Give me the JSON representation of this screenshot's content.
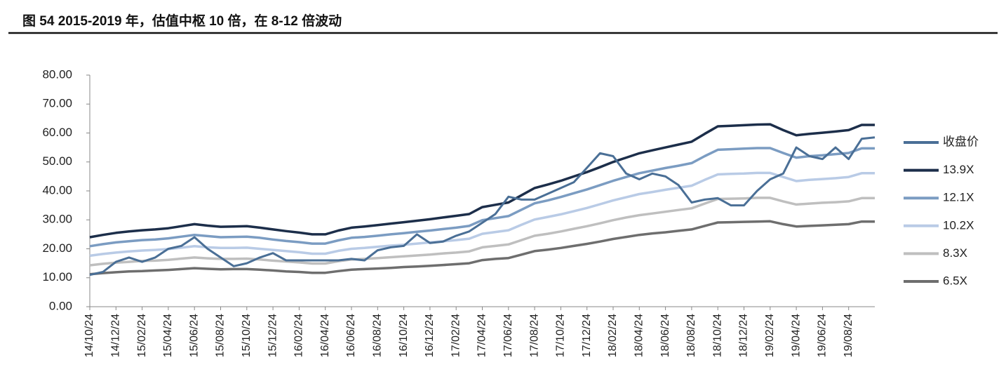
{
  "chart_data": {
    "type": "line",
    "title": "图 54 2015-2019 年，估值中枢 10 倍，在 8-12 倍波动",
    "categories": [
      "14/10/24",
      null,
      "14/12/24",
      null,
      "15/02/24",
      null,
      "15/04/24",
      null,
      "15/06/24",
      null,
      "15/08/24",
      null,
      "15/10/24",
      null,
      "15/12/24",
      null,
      "16/02/24",
      null,
      "16/04/24",
      null,
      "16/06/24",
      null,
      "16/08/24",
      null,
      "16/10/24",
      null,
      "16/12/24",
      null,
      "17/02/24",
      null,
      "17/04/24",
      null,
      "17/06/24",
      null,
      "17/08/24",
      null,
      "17/10/24",
      null,
      "17/12/24",
      null,
      "18/02/24",
      null,
      "18/04/24",
      null,
      "18/06/24",
      null,
      "18/08/24",
      null,
      "18/10/24",
      null,
      "18/12/24",
      null,
      "19/02/24",
      null,
      "19/04/24",
      null,
      "19/06/24",
      null,
      "19/08/24",
      null,
      null
    ],
    "ylim": [
      0,
      80
    ],
    "yticks": [
      {
        "value": 0,
        "label": "0.00"
      },
      {
        "value": 10,
        "label": "10.00"
      },
      {
        "value": 20,
        "label": "20.00"
      },
      {
        "value": 30,
        "label": "30.00"
      },
      {
        "value": 40,
        "label": "40.00"
      },
      {
        "value": 50,
        "label": "50.00"
      },
      {
        "value": 60,
        "label": "60.00"
      },
      {
        "value": 70,
        "label": "70.00"
      },
      {
        "value": 80,
        "label": "80.00"
      }
    ],
    "grid": false,
    "legend": "right",
    "series": [
      {
        "name": "收盘价",
        "color": "#4a6f96",
        "values": [
          11,
          12,
          15.5,
          17,
          15.5,
          17,
          20,
          21,
          24,
          20,
          17,
          14,
          15,
          17,
          18.5,
          16,
          16,
          16,
          16,
          16,
          16.5,
          16,
          19.5,
          20.5,
          21,
          25,
          22,
          22.5,
          24.5,
          26,
          29,
          32,
          38,
          37,
          37,
          39,
          41,
          43,
          48,
          53,
          52,
          46,
          44,
          46,
          45,
          42,
          36,
          37,
          37.5,
          35,
          35,
          40,
          44,
          46,
          55,
          52,
          51,
          55,
          51,
          58,
          58.5
        ]
      },
      {
        "name": "13.9X",
        "color": "#1c2e4a",
        "values": [
          24.0,
          24.8,
          25.5,
          26.0,
          26.4,
          26.7,
          27.1,
          27.8,
          28.5,
          28.0,
          27.6,
          27.7,
          27.8,
          27.3,
          26.7,
          26.1,
          25.6,
          25.0,
          25.0,
          26.3,
          27.3,
          27.7,
          28.2,
          28.7,
          29.2,
          29.7,
          30.2,
          30.8,
          31.4,
          32.0,
          34.4,
          35.2,
          36.0,
          38.5,
          41.0,
          42.2,
          43.5,
          45.0,
          46.5,
          48.2,
          50.0,
          51.5,
          53.0,
          54.0,
          55.0,
          56.0,
          57.0,
          59.7,
          62.3,
          62.5,
          62.7,
          62.9,
          63.0,
          61.0,
          59.2,
          59.7,
          60.1,
          60.5,
          61.0,
          62.8,
          62.8
        ]
      },
      {
        "name": "12.1X",
        "color": "#7b9cc2",
        "values": [
          20.9,
          21.6,
          22.2,
          22.6,
          23.0,
          23.2,
          23.6,
          24.2,
          24.8,
          24.4,
          24.0,
          24.1,
          24.2,
          23.8,
          23.2,
          22.7,
          22.3,
          21.8,
          21.8,
          22.9,
          23.8,
          24.1,
          24.5,
          25.0,
          25.4,
          25.9,
          26.3,
          26.8,
          27.3,
          27.9,
          29.9,
          30.6,
          31.3,
          33.5,
          35.7,
          36.7,
          37.9,
          39.2,
          40.5,
          42.0,
          43.5,
          44.8,
          46.1,
          47.0,
          47.9,
          48.7,
          49.6,
          52.0,
          54.2,
          54.4,
          54.6,
          54.8,
          54.8,
          53.1,
          51.5,
          52.0,
          52.3,
          52.7,
          53.1,
          54.7,
          54.7
        ]
      },
      {
        "name": "10.2X",
        "color": "#b9cbe6",
        "values": [
          17.6,
          18.2,
          18.7,
          19.1,
          19.4,
          19.6,
          19.9,
          20.4,
          20.9,
          20.5,
          20.3,
          20.3,
          20.4,
          20.0,
          19.6,
          19.2,
          18.8,
          18.3,
          18.3,
          19.3,
          20.0,
          20.3,
          20.7,
          21.1,
          21.4,
          21.8,
          22.2,
          22.6,
          23.0,
          23.5,
          25.2,
          25.8,
          26.4,
          28.3,
          30.1,
          31.0,
          31.9,
          33.0,
          34.1,
          35.4,
          36.7,
          37.8,
          38.9,
          39.6,
          40.4,
          41.1,
          41.8,
          43.8,
          45.7,
          45.9,
          46.0,
          46.2,
          46.2,
          44.8,
          43.4,
          43.8,
          44.1,
          44.4,
          44.8,
          46.1,
          46.1
        ]
      },
      {
        "name": "8.3X",
        "color": "#bfbfbf",
        "values": [
          14.3,
          14.8,
          15.2,
          15.5,
          15.8,
          15.9,
          16.2,
          16.6,
          17.0,
          16.7,
          16.5,
          16.5,
          16.6,
          16.3,
          15.9,
          15.6,
          15.3,
          14.9,
          14.9,
          15.7,
          16.3,
          16.5,
          16.8,
          17.1,
          17.4,
          17.7,
          18.0,
          18.4,
          18.7,
          19.1,
          20.5,
          21.0,
          21.5,
          23.0,
          24.5,
          25.2,
          26.0,
          26.9,
          27.8,
          28.8,
          29.9,
          30.8,
          31.6,
          32.2,
          32.8,
          33.4,
          34.0,
          35.6,
          37.2,
          37.3,
          37.4,
          37.6,
          37.6,
          36.4,
          35.3,
          35.6,
          35.9,
          36.1,
          36.4,
          37.5,
          37.5
        ]
      },
      {
        "name": "6.5X",
        "color": "#6e6e6e",
        "values": [
          11.2,
          11.6,
          11.9,
          12.2,
          12.3,
          12.5,
          12.7,
          13.0,
          13.3,
          13.1,
          12.9,
          13.0,
          13.0,
          12.8,
          12.5,
          12.2,
          12.0,
          11.7,
          11.7,
          12.3,
          12.8,
          13.0,
          13.2,
          13.4,
          13.7,
          13.9,
          14.1,
          14.4,
          14.7,
          15.0,
          16.1,
          16.5,
          16.8,
          18.0,
          19.2,
          19.7,
          20.3,
          21.0,
          21.7,
          22.5,
          23.4,
          24.1,
          24.8,
          25.3,
          25.7,
          26.2,
          26.7,
          27.9,
          29.1,
          29.2,
          29.3,
          29.4,
          29.5,
          28.5,
          27.7,
          27.9,
          28.1,
          28.3,
          28.5,
          29.4,
          29.4
        ]
      }
    ]
  }
}
